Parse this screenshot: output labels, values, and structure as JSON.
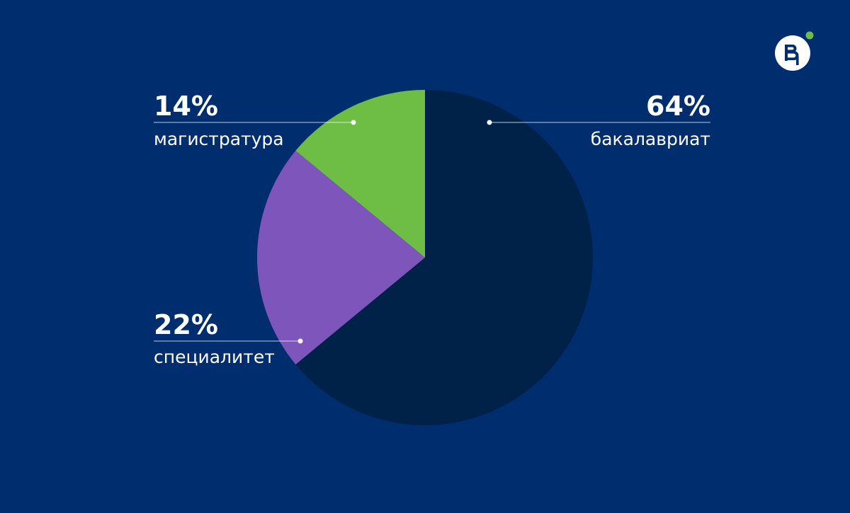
{
  "chart_data": {
    "type": "pie",
    "title": "",
    "start_angle_deg": 0,
    "direction": "clockwise",
    "slices": [
      {
        "label": "бакалавриат",
        "value": 64,
        "value_label": "64%",
        "color": "#012248"
      },
      {
        "label": "специалитет",
        "value": 22,
        "value_label": "22%",
        "color": "#7e55bb"
      },
      {
        "label": "магистратура",
        "value": 14,
        "value_label": "14%",
        "color": "#6ebe45"
      }
    ]
  },
  "colors": {
    "background": "#002d6e",
    "label_text": "#ffffff",
    "logo_accent": "#6ebe45"
  },
  "icons": {
    "logo": "hse-university-logo"
  }
}
